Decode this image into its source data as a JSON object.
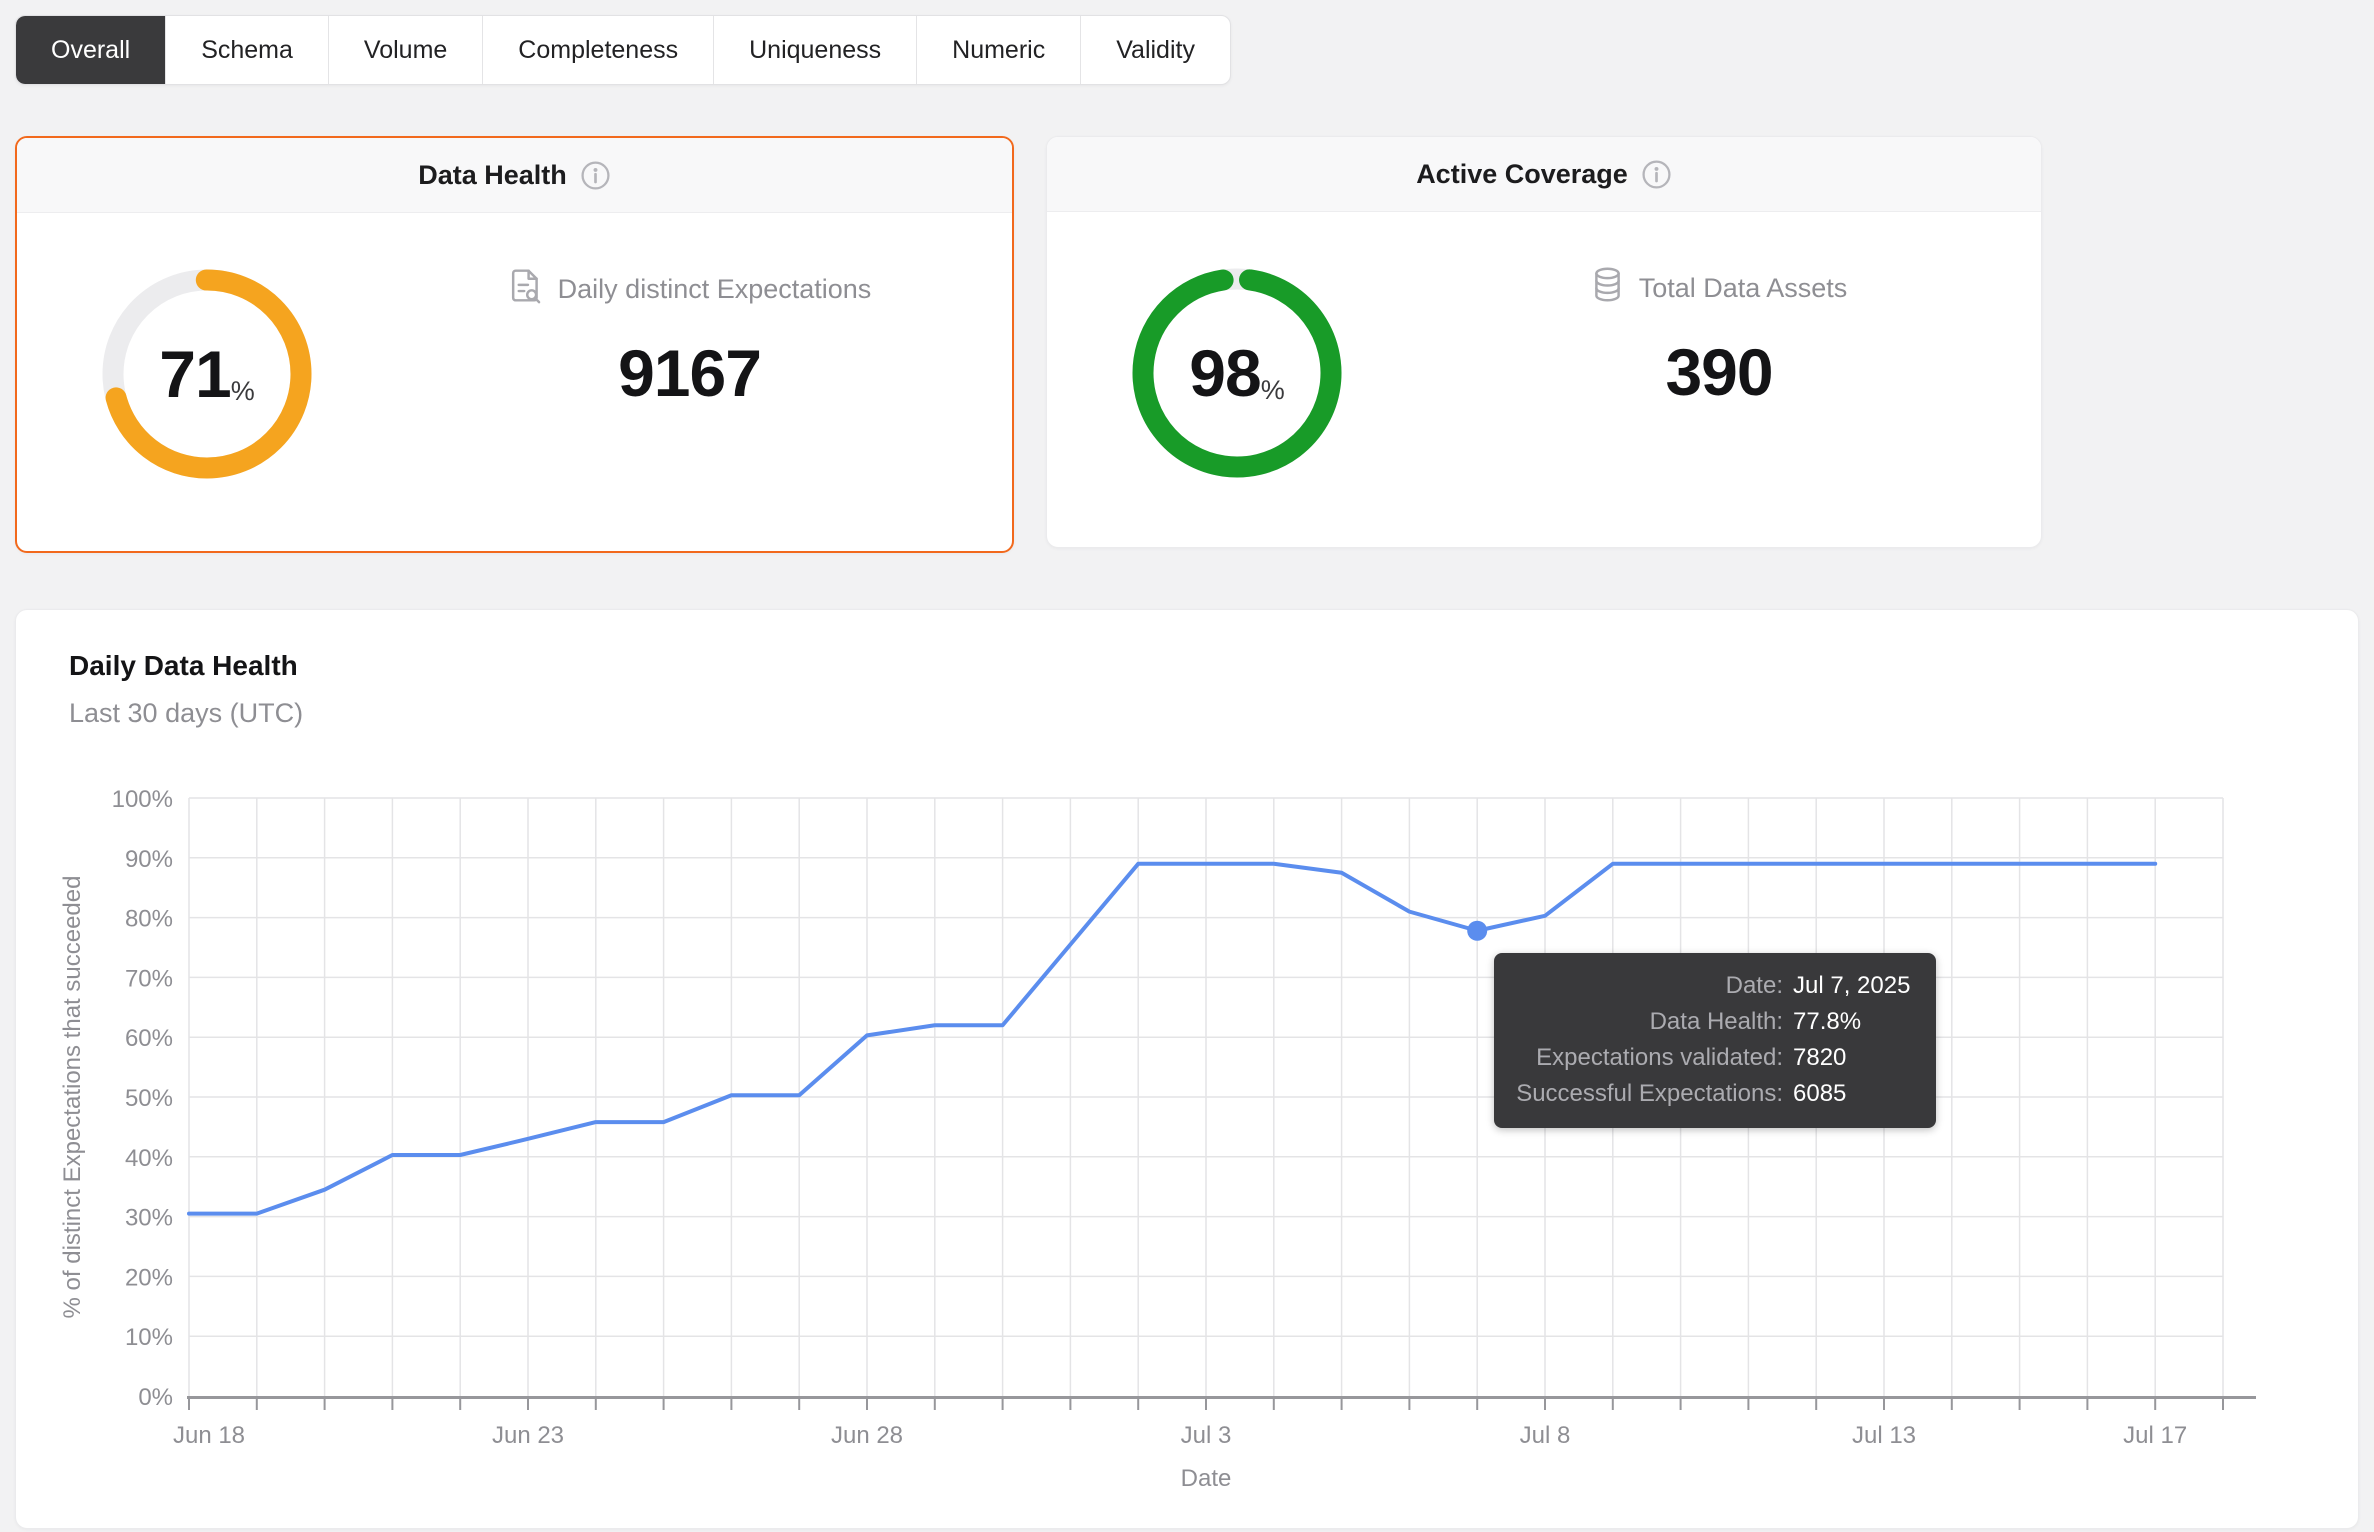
{
  "tab_bar": {
    "tabs": [
      {
        "label": "Overall",
        "selected": true
      },
      {
        "label": "Schema",
        "selected": false
      },
      {
        "label": "Volume",
        "selected": false
      },
      {
        "label": "Completeness",
        "selected": false
      },
      {
        "label": "Uniqueness",
        "selected": false
      },
      {
        "label": "Numeric",
        "selected": false
      },
      {
        "label": "Validity",
        "selected": false
      }
    ]
  },
  "cards": {
    "data_health": {
      "title": "Data Health",
      "info_icon": "info-icon",
      "percent": 71,
      "percent_suffix": "%",
      "gauge_color": "#F5A41F",
      "gauge_track_color": "#ECECEE",
      "metric_icon": "document-search-icon",
      "metric_label": "Daily distinct Expectations",
      "metric_value": "9167",
      "selected": true
    },
    "active_coverage": {
      "title": "Active Coverage",
      "info_icon": "info-icon",
      "percent": 98,
      "percent_suffix": "%",
      "gauge_color": "#189B28",
      "gauge_track_color": "#ECECEE",
      "metric_icon": "database-icon",
      "metric_label": "Total Data Assets",
      "metric_value": "390",
      "selected": false
    }
  },
  "chart_card": {
    "title": "Daily Data Health",
    "subtitle": "Last 30 days (UTC)"
  },
  "chart_data": {
    "type": "line",
    "title": "Daily Data Health",
    "subtitle": "Last 30 days (UTC)",
    "xlabel": "Date",
    "ylabel": "% of distinct Expectations that succeeded",
    "ylim": [
      0,
      100
    ],
    "y_tick_step": 10,
    "y_tick_suffix": "%",
    "grid": true,
    "line_color": "#5B8DEE",
    "x": [
      "Jun 18",
      "Jun 19",
      "Jun 20",
      "Jun 21",
      "Jun 22",
      "Jun 23",
      "Jun 24",
      "Jun 25",
      "Jun 26",
      "Jun 27",
      "Jun 28",
      "Jun 29",
      "Jun 30",
      "Jul 1",
      "Jul 2",
      "Jul 3",
      "Jul 4",
      "Jul 5",
      "Jul 6",
      "Jul 7",
      "Jul 8",
      "Jul 9",
      "Jul 10",
      "Jul 11",
      "Jul 12",
      "Jul 13",
      "Jul 14",
      "Jul 15",
      "Jul 16",
      "Jul 17"
    ],
    "values": [
      30.5,
      30.5,
      34.5,
      40.3,
      40.3,
      43,
      45.8,
      45.8,
      50.3,
      50.3,
      60.3,
      62,
      62,
      75.5,
      89,
      89,
      89,
      87.5,
      81,
      77.8,
      80.3,
      89,
      89,
      89,
      89,
      89,
      89,
      89,
      89,
      89
    ],
    "x_tick_labels": [
      {
        "index": 0,
        "label": "Jun 18"
      },
      {
        "index": 5,
        "label": "Jun 23"
      },
      {
        "index": 10,
        "label": "Jun 28"
      },
      {
        "index": 15,
        "label": "Jul 3"
      },
      {
        "index": 20,
        "label": "Jul 8"
      },
      {
        "index": 25,
        "label": "Jul 13"
      },
      {
        "index": 29,
        "label": "Jul 17"
      }
    ],
    "highlight_point": {
      "index": 19,
      "date": "Jul 7, 2025",
      "value": 77.8
    },
    "tooltip": {
      "rows": [
        {
          "label": "Date:",
          "value": "Jul 7, 2025"
        },
        {
          "label": "Data Health:",
          "value": "77.8%"
        },
        {
          "label": "Expectations validated:",
          "value": "7820"
        },
        {
          "label": "Successful Expectations:",
          "value": "6085"
        }
      ]
    }
  }
}
